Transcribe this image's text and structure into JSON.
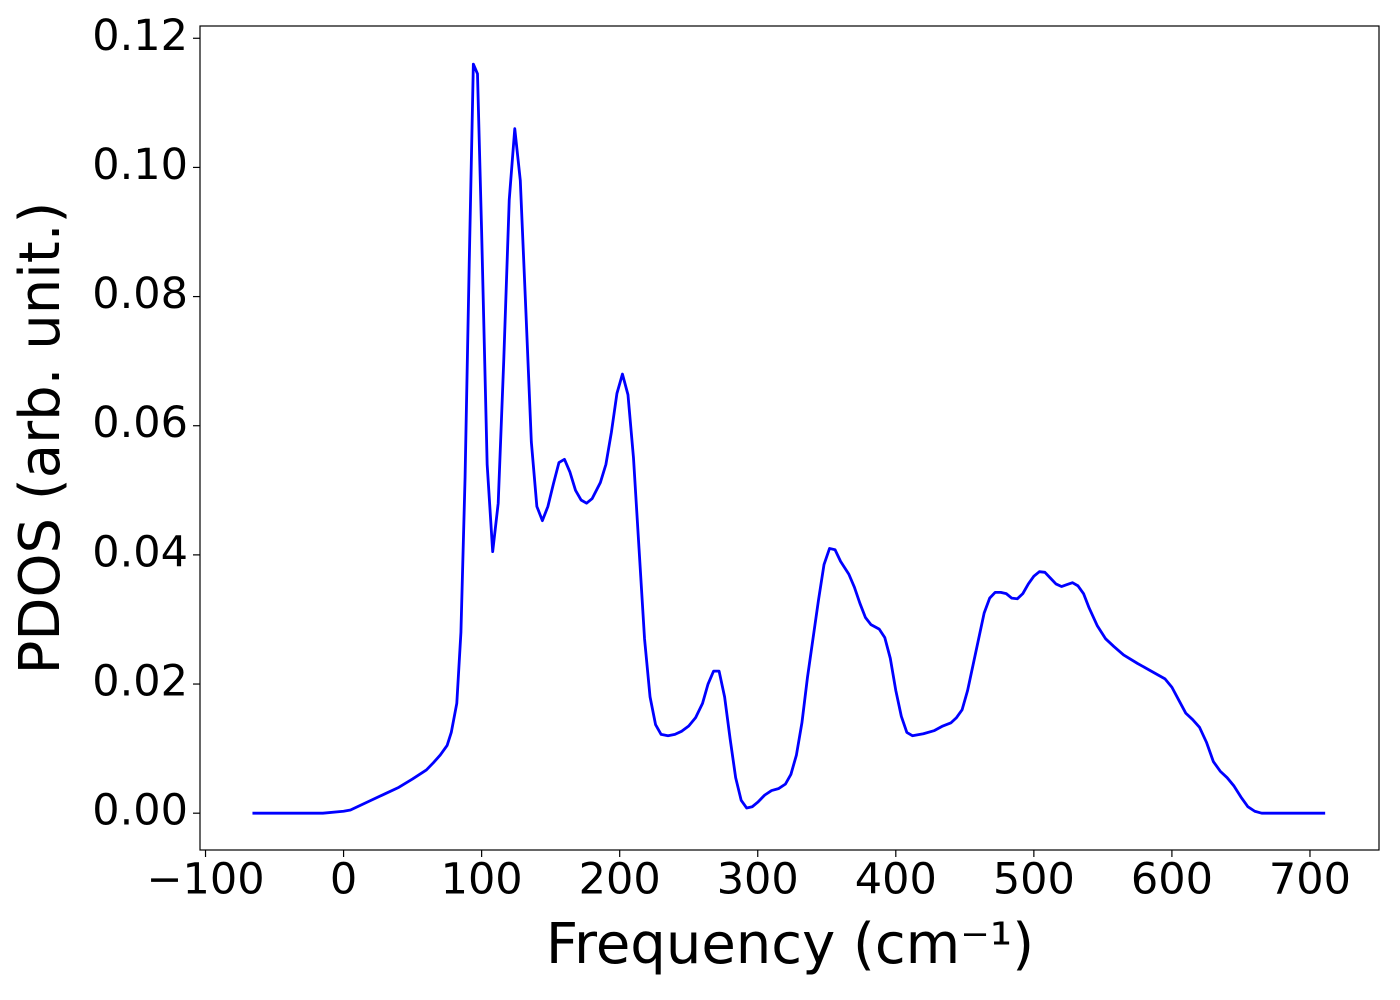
{
  "chart_data": {
    "type": "line",
    "x_label": "Frequency (cm⁻¹)",
    "y_label": "PDOS (arb. unit.)",
    "xlim": [
      -104,
      750
    ],
    "ylim": [
      -0.0057,
      0.1219
    ],
    "xticks": [
      {
        "value": -100,
        "label": "−100"
      },
      0,
      100,
      200,
      300,
      400,
      500,
      600,
      700
    ],
    "yticks": [
      {
        "value": 0,
        "label": "0.00"
      },
      0.02,
      0.04,
      0.06,
      0.08,
      {
        "value": 0.1,
        "label": "0.10"
      },
      0.12
    ],
    "grid": false,
    "x": [
      -66,
      -50,
      -30,
      -15,
      0,
      5,
      10,
      20,
      30,
      40,
      50,
      60,
      65,
      70,
      75,
      78,
      82,
      85,
      88,
      91,
      94,
      97,
      100,
      104,
      108,
      112,
      116,
      120,
      124,
      128,
      132,
      136,
      140,
      144,
      148,
      152,
      156,
      160,
      164,
      168,
      172,
      176,
      180,
      186,
      190,
      194,
      198,
      202,
      206,
      210,
      214,
      218,
      222,
      226,
      230,
      235,
      240,
      245,
      250,
      255,
      260,
      264,
      268,
      272,
      276,
      280,
      284,
      288,
      292,
      296,
      300,
      305,
      310,
      315,
      320,
      324,
      328,
      332,
      336,
      340,
      344,
      348,
      352,
      356,
      360,
      366,
      370,
      374,
      378,
      382,
      388,
      392,
      396,
      400,
      404,
      408,
      412,
      420,
      428,
      434,
      440,
      444,
      448,
      452,
      456,
      460,
      464,
      468,
      472,
      476,
      480,
      484,
      488,
      492,
      496,
      500,
      504,
      508,
      512,
      516,
      520,
      524,
      528,
      532,
      536,
      540,
      546,
      552,
      558,
      565,
      575,
      585,
      595,
      600,
      605,
      610,
      615,
      620,
      625,
      630,
      635,
      640,
      645,
      650,
      655,
      660,
      665,
      680,
      700,
      711
    ],
    "series": [
      {
        "color": "#0000ff",
        "values": [
          0,
          0,
          0,
          0,
          0.0003,
          0.0005,
          0.001,
          0.002,
          0.003,
          0.004,
          0.0053,
          0.0067,
          0.0078,
          0.009,
          0.0105,
          0.0125,
          0.017,
          0.028,
          0.052,
          0.085,
          0.116,
          0.1145,
          0.09,
          0.054,
          0.0405,
          0.048,
          0.07,
          0.095,
          0.106,
          0.098,
          0.078,
          0.0575,
          0.0475,
          0.0453,
          0.0475,
          0.051,
          0.0543,
          0.0548,
          0.0528,
          0.05,
          0.0485,
          0.048,
          0.0487,
          0.0512,
          0.054,
          0.059,
          0.065,
          0.068,
          0.0648,
          0.055,
          0.041,
          0.027,
          0.018,
          0.0137,
          0.0122,
          0.012,
          0.0122,
          0.0127,
          0.0135,
          0.0148,
          0.017,
          0.02,
          0.022,
          0.022,
          0.018,
          0.0115,
          0.0055,
          0.002,
          0.0008,
          0.001,
          0.0017,
          0.0028,
          0.0035,
          0.0038,
          0.0045,
          0.006,
          0.009,
          0.014,
          0.021,
          0.027,
          0.033,
          0.0385,
          0.041,
          0.0408,
          0.039,
          0.037,
          0.035,
          0.0325,
          0.0303,
          0.0292,
          0.0285,
          0.0272,
          0.024,
          0.019,
          0.015,
          0.0125,
          0.012,
          0.0123,
          0.0128,
          0.0135,
          0.014,
          0.0148,
          0.016,
          0.019,
          0.023,
          0.027,
          0.031,
          0.0333,
          0.0342,
          0.0342,
          0.034,
          0.0333,
          0.0332,
          0.034,
          0.0355,
          0.0367,
          0.0374,
          0.0373,
          0.0364,
          0.0355,
          0.0351,
          0.0354,
          0.0357,
          0.0352,
          0.034,
          0.0318,
          0.029,
          0.027,
          0.0258,
          0.0245,
          0.0232,
          0.022,
          0.0208,
          0.0195,
          0.0175,
          0.0155,
          0.0145,
          0.0133,
          0.011,
          0.008,
          0.0065,
          0.0055,
          0.0042,
          0.0025,
          0.001,
          0.0003,
          0,
          0,
          0,
          0
        ]
      }
    ]
  }
}
